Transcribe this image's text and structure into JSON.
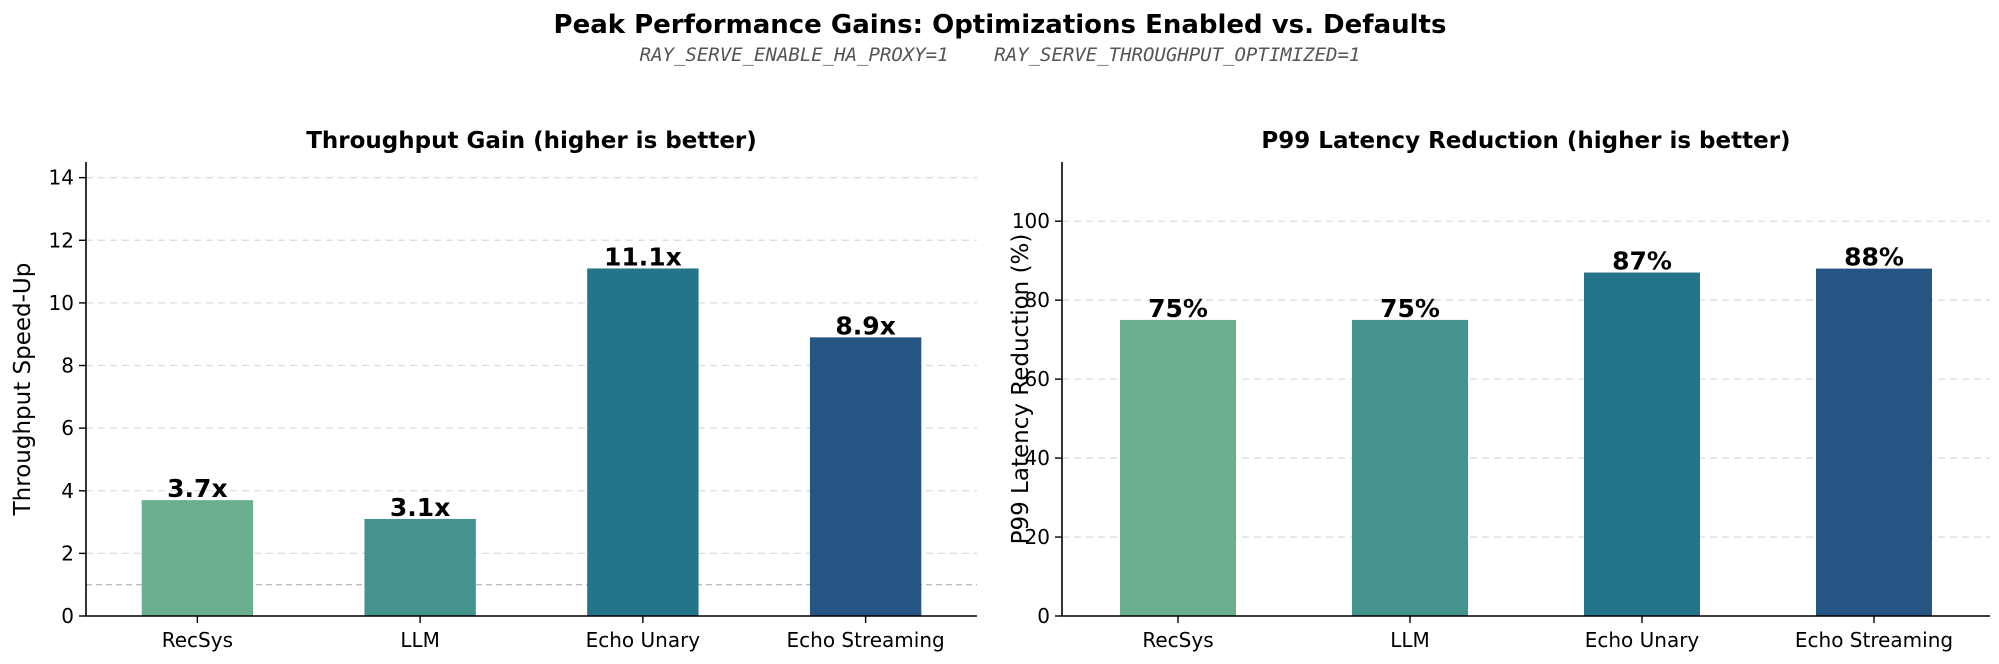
{
  "title": "Peak Performance Gains: Optimizations Enabled vs. Defaults",
  "subtitle": "RAY_SERVE_ENABLE_HA_PROXY=1    RAY_SERVE_THROUGHPUT_OPTIMIZED=1",
  "chart_data": [
    {
      "type": "bar",
      "title": "Throughput Gain (higher is better)",
      "xlabel": "",
      "ylabel": "Throughput Speed-Up",
      "categories": [
        "RecSys",
        "LLM",
        "Echo Unary",
        "Echo Streaming"
      ],
      "values": [
        3.7,
        3.1,
        11.1,
        8.9
      ],
      "labels": [
        "3.7x",
        "3.1x",
        "11.1x",
        "8.9x"
      ],
      "colors": [
        "#6aaf8e",
        "#45938f",
        "#24748a",
        "#245583"
      ],
      "ylim": [
        0,
        14.5
      ],
      "yticks": [
        0,
        2,
        4,
        6,
        8,
        10,
        12,
        14
      ],
      "reference_line": 1.0,
      "grid": true
    },
    {
      "type": "bar",
      "title": "P99 Latency Reduction (higher is better)",
      "xlabel": "",
      "ylabel": "P99 Latency Reduction (%)",
      "categories": [
        "RecSys",
        "LLM",
        "Echo Unary",
        "Echo Streaming"
      ],
      "values": [
        75,
        75,
        87,
        88
      ],
      "labels": [
        "75%",
        "75%",
        "87%",
        "88%"
      ],
      "colors": [
        "#6aaf8e",
        "#45938f",
        "#24748a",
        "#245583"
      ],
      "ylim": [
        0,
        115
      ],
      "yticks": [
        0,
        20,
        40,
        60,
        80,
        100
      ],
      "grid": true
    }
  ]
}
